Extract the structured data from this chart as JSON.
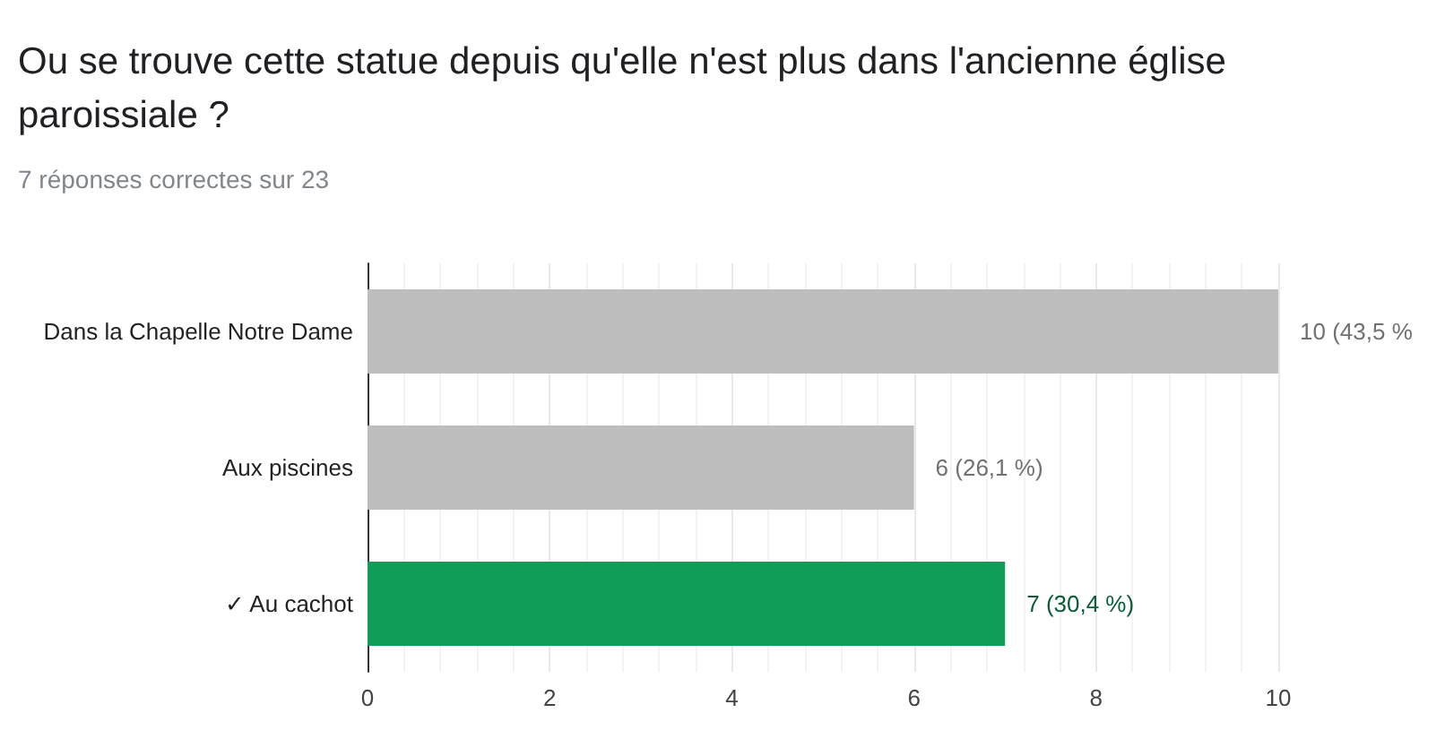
{
  "chart_data": {
    "type": "bar",
    "orientation": "horizontal",
    "title": "Ou se trouve cette statue depuis qu'elle n'est plus dans l'ancienne église paroissiale ?",
    "subtitle": "7 réponses correctes sur 23",
    "categories": [
      "Dans la Chapelle Notre Dame",
      "Aux piscines",
      "✓ Au cachot"
    ],
    "values": [
      10,
      6,
      7
    ],
    "colors": [
      "#bdbdbd",
      "#bdbdbd",
      "#0f9d58"
    ],
    "value_labels": [
      "10 (43,5 %",
      "6 (26,1 %)",
      "7 (30,4 %)"
    ],
    "xlim": [
      0,
      10
    ],
    "xticks": [
      0,
      2,
      4,
      6,
      8,
      10
    ],
    "grid": "x"
  }
}
